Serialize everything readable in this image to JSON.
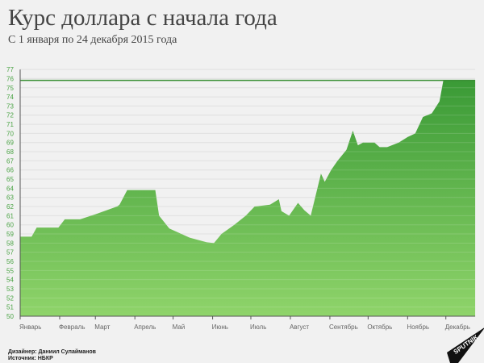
{
  "chart_data": {
    "type": "area",
    "title": "Курс доллара с начала года",
    "subtitle": "С 1 января по 24 декабря 2015 года",
    "xlabel": "",
    "ylabel": "",
    "ylim": [
      50,
      77
    ],
    "yticks": [
      50,
      51,
      52,
      53,
      54,
      55,
      56,
      57,
      58,
      59,
      60,
      61,
      62,
      63,
      64,
      65,
      66,
      67,
      68,
      69,
      70,
      71,
      72,
      73,
      74,
      75,
      76,
      77
    ],
    "xlim": [
      "2015-01-01",
      "2015-12-24"
    ],
    "month_labels": [
      "Январь",
      "Февраль",
      "Март",
      "Апрель",
      "Май",
      "Июнь",
      "Июль",
      "Август",
      "Сентябрь",
      "Октябрь",
      "Ноябрь",
      "Декабрь"
    ],
    "grid": true,
    "reference_line": 75.8,
    "colors": {
      "fill_top": "#3a9a36",
      "fill_bottom": "#8fd46a",
      "line": "#3a8f35",
      "tick_label": "#4aa344"
    },
    "points": [
      [
        "2015-01-01",
        58.7
      ],
      [
        "2015-01-10",
        58.7
      ],
      [
        "2015-01-14",
        59.7
      ],
      [
        "2015-01-31",
        59.7
      ],
      [
        "2015-02-05",
        60.6
      ],
      [
        "2015-02-17",
        60.6
      ],
      [
        "2015-03-02",
        61.2
      ],
      [
        "2015-03-18",
        62.0
      ],
      [
        "2015-03-20",
        62.2
      ],
      [
        "2015-03-26",
        63.8
      ],
      [
        "2015-04-17",
        63.8
      ],
      [
        "2015-04-20",
        61.0
      ],
      [
        "2015-04-28",
        59.6
      ],
      [
        "2015-05-14",
        58.6
      ],
      [
        "2015-05-27",
        58.1
      ],
      [
        "2015-06-02",
        58.0
      ],
      [
        "2015-06-08",
        59.0
      ],
      [
        "2015-06-18",
        60.0
      ],
      [
        "2015-06-27",
        61.0
      ],
      [
        "2015-07-04",
        62.0
      ],
      [
        "2015-07-16",
        62.2
      ],
      [
        "2015-07-23",
        62.8
      ],
      [
        "2015-07-25",
        61.5
      ],
      [
        "2015-07-31",
        61.0
      ],
      [
        "2015-08-07",
        62.4
      ],
      [
        "2015-08-12",
        61.6
      ],
      [
        "2015-08-17",
        61.0
      ],
      [
        "2015-08-25",
        65.6
      ],
      [
        "2015-08-28",
        64.7
      ],
      [
        "2015-09-02",
        66.0
      ],
      [
        "2015-09-07",
        67.0
      ],
      [
        "2015-09-14",
        68.2
      ],
      [
        "2015-09-19",
        70.3
      ],
      [
        "2015-09-23",
        68.7
      ],
      [
        "2015-09-27",
        69.0
      ],
      [
        "2015-10-06",
        69.0
      ],
      [
        "2015-10-10",
        68.5
      ],
      [
        "2015-10-16",
        68.5
      ],
      [
        "2015-10-25",
        69.0
      ],
      [
        "2015-11-01",
        69.6
      ],
      [
        "2015-11-07",
        70.0
      ],
      [
        "2015-11-13",
        71.8
      ],
      [
        "2015-11-20",
        72.2
      ],
      [
        "2015-11-26",
        73.5
      ],
      [
        "2015-11-29",
        75.8
      ],
      [
        "2015-12-24",
        75.8
      ]
    ]
  },
  "credits": {
    "designer": "Дизайнер: Даниил Сулайманов",
    "source": "Источник: НБКР"
  },
  "logo": "SPUTNIK"
}
